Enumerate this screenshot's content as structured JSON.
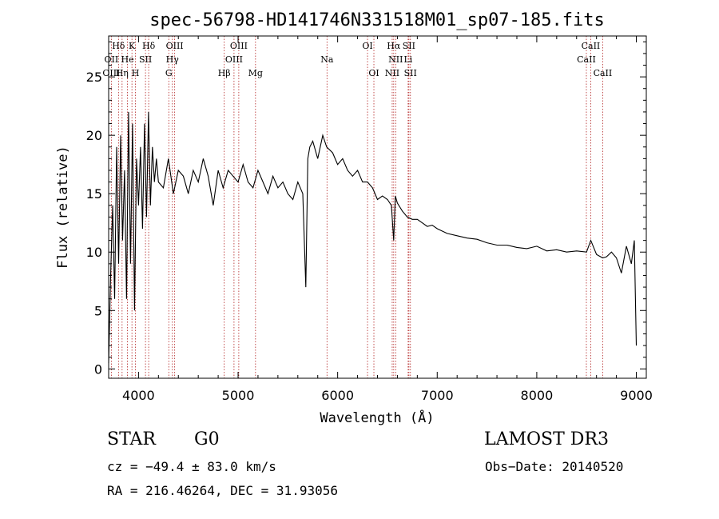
{
  "chart_data": {
    "type": "line",
    "title": "spec-56798-HD141746N331518M01_sp07-185.fits",
    "xlabel": "Wavelength (Å)",
    "ylabel": "Flux (relative)",
    "xlim": [
      3700,
      9100
    ],
    "ylim": [
      -0.8,
      28.5
    ],
    "xticks": [
      4000,
      5000,
      6000,
      7000,
      8000,
      9000
    ],
    "yticks": [
      0,
      5,
      10,
      15,
      20,
      25
    ],
    "grid": false,
    "series": [
      {
        "name": "flux",
        "x": [
          3700,
          3720,
          3740,
          3760,
          3780,
          3800,
          3820,
          3840,
          3860,
          3880,
          3900,
          3920,
          3940,
          3960,
          3980,
          4000,
          4020,
          4040,
          4060,
          4080,
          4100,
          4120,
          4140,
          4160,
          4180,
          4200,
          4250,
          4300,
          4350,
          4400,
          4450,
          4500,
          4550,
          4600,
          4650,
          4700,
          4750,
          4800,
          4850,
          4900,
          4950,
          5000,
          5050,
          5100,
          5150,
          5200,
          5250,
          5300,
          5350,
          5400,
          5450,
          5500,
          5550,
          5600,
          5650,
          5680,
          5700,
          5720,
          5750,
          5800,
          5850,
          5890,
          5950,
          6000,
          6050,
          6100,
          6150,
          6200,
          6250,
          6300,
          6350,
          6400,
          6450,
          6500,
          6540,
          6563,
          6580,
          6600,
          6650,
          6700,
          6750,
          6800,
          6850,
          6900,
          6950,
          7000,
          7100,
          7200,
          7300,
          7400,
          7500,
          7600,
          7700,
          7800,
          7900,
          8000,
          8100,
          8200,
          8300,
          8400,
          8500,
          8542,
          8600,
          8662,
          8700,
          8750,
          8800,
          8850,
          8900,
          8950,
          8980,
          9000
        ],
        "values": [
          0.5,
          8,
          14,
          6,
          19,
          9,
          20,
          11,
          17,
          6,
          22,
          9,
          21,
          5,
          18,
          14,
          19,
          12,
          21,
          13,
          22,
          14,
          19,
          16,
          18,
          16,
          15.5,
          18,
          15,
          17,
          16.5,
          15,
          17,
          16,
          18,
          16.5,
          14,
          17,
          15.5,
          17,
          16.5,
          16,
          17.5,
          16,
          15.5,
          17,
          16,
          15,
          16.5,
          15.5,
          16,
          15,
          14.5,
          16,
          15,
          7,
          18,
          19,
          19.5,
          18,
          20,
          19,
          18.5,
          17.5,
          18,
          17,
          16.5,
          17,
          16,
          16,
          15.5,
          14.5,
          14.8,
          14.5,
          14,
          11,
          14.8,
          14.2,
          13.5,
          13,
          12.8,
          12.8,
          12.5,
          12.2,
          12.3,
          12,
          11.6,
          11.4,
          11.2,
          11.1,
          10.8,
          10.6,
          10.6,
          10.4,
          10.3,
          10.5,
          10.1,
          10.2,
          10,
          10.1,
          10,
          11,
          9.8,
          9.5,
          9.6,
          10,
          9.5,
          8.2,
          10.5,
          9,
          11,
          2
        ]
      }
    ],
    "annotations": [
      {
        "label": "Hδ",
        "wavelength": 3799,
        "row": 1
      },
      {
        "label": "K",
        "wavelength": 3934,
        "row": 1
      },
      {
        "label": "Hδ",
        "wavelength": 4102,
        "row": 1
      },
      {
        "label": "OIII",
        "wavelength": 4363,
        "row": 1
      },
      {
        "label": "OIII",
        "wavelength": 5007,
        "row": 1
      },
      {
        "label": "OI",
        "wavelength": 6300,
        "row": 1
      },
      {
        "label": "Hα",
        "wavelength": 6563,
        "row": 1
      },
      {
        "label": "SII",
        "wavelength": 6716,
        "row": 1
      },
      {
        "label": "CaII",
        "wavelength": 8542,
        "row": 1
      },
      {
        "label": "OII",
        "wavelength": 3727,
        "row": 2
      },
      {
        "label": "He",
        "wavelength": 3889,
        "row": 2
      },
      {
        "label": "SII",
        "wavelength": 4070,
        "row": 2
      },
      {
        "label": "Hγ",
        "wavelength": 4340,
        "row": 2
      },
      {
        "label": "OIII",
        "wavelength": 4959,
        "row": 2
      },
      {
        "label": "Na",
        "wavelength": 5893,
        "row": 2
      },
      {
        "label": "NII",
        "wavelength": 6583,
        "row": 2
      },
      {
        "label": "Li",
        "wavelength": 6708,
        "row": 2
      },
      {
        "label": "CaII",
        "wavelength": 8498,
        "row": 2
      },
      {
        "label": "OIII",
        "wavelength": 3727,
        "row": 3
      },
      {
        "label": "Hη",
        "wavelength": 3835,
        "row": 3
      },
      {
        "label": "H",
        "wavelength": 3969,
        "row": 3
      },
      {
        "label": "G",
        "wavelength": 4304,
        "row": 3
      },
      {
        "label": "Hβ",
        "wavelength": 4861,
        "row": 3
      },
      {
        "label": "Mg",
        "wavelength": 5175,
        "row": 3
      },
      {
        "label": "OI",
        "wavelength": 6364,
        "row": 3
      },
      {
        "label": "NII",
        "wavelength": 6548,
        "row": 3
      },
      {
        "label": "SII",
        "wavelength": 6731,
        "row": 3
      },
      {
        "label": "CaII",
        "wavelength": 8662,
        "row": 3
      }
    ],
    "line_markers": [
      3727,
      3799,
      3835,
      3889,
      3934,
      3969,
      4070,
      4102,
      4304,
      4340,
      4363,
      4861,
      4959,
      5007,
      5175,
      5893,
      6300,
      6364,
      6548,
      6563,
      6583,
      6708,
      6716,
      6731,
      8498,
      8542,
      8662
    ],
    "colors": {
      "line": "#000000",
      "marker": "#b22222"
    }
  },
  "info": {
    "class": "STAR",
    "subclass": "G0",
    "survey": "LAMOST DR3",
    "cz": "cz = −49.4 ± 83.0 km/s",
    "obs_date": "Obs−Date: 20140520",
    "coords": "RA = 216.46264, DEC =  31.93056"
  }
}
